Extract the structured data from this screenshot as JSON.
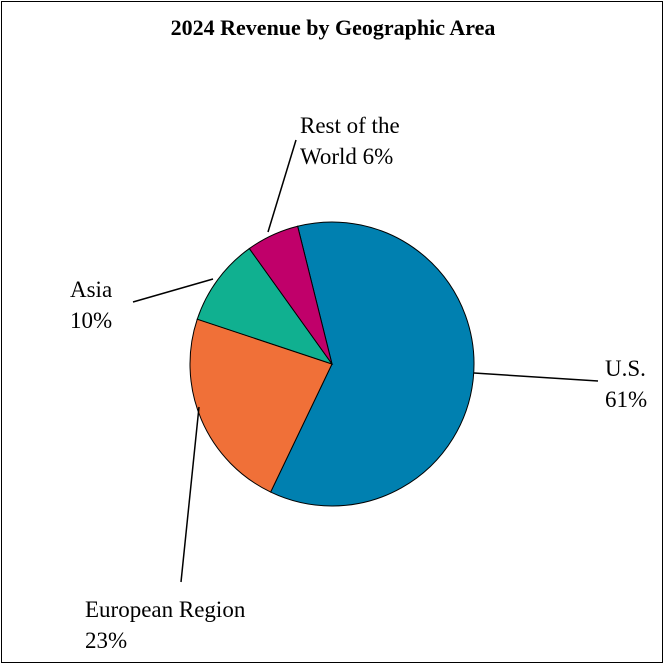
{
  "chart_data": {
    "type": "pie",
    "title": "2024 Revenue by Geographic Area",
    "categories": [
      "U.S.",
      "European Region",
      "Asia",
      "Rest of the World"
    ],
    "values": [
      61,
      23,
      10,
      6
    ],
    "value_labels": [
      "61%",
      "23%",
      "10%",
      "6%"
    ],
    "colors": [
      "#0080b0",
      "#f07038",
      "#10b090",
      "#c0006a"
    ]
  }
}
